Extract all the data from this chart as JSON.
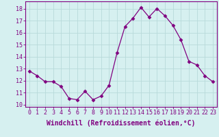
{
  "x": [
    0,
    1,
    2,
    3,
    4,
    5,
    6,
    7,
    8,
    9,
    10,
    11,
    12,
    13,
    14,
    15,
    16,
    17,
    18,
    19,
    20,
    21,
    22,
    23
  ],
  "y": [
    12.8,
    12.4,
    11.9,
    11.9,
    11.5,
    10.5,
    10.4,
    11.1,
    10.4,
    10.7,
    11.6,
    14.3,
    16.5,
    17.2,
    18.1,
    17.3,
    18.0,
    17.4,
    16.6,
    15.4,
    13.6,
    13.3,
    12.4,
    11.9
  ],
  "line_color": "#800080",
  "marker": "D",
  "marker_size": 2.5,
  "bg_color": "#d6f0f0",
  "grid_color": "#b8dada",
  "xlabel": "Windchill (Refroidissement éolien,°C)",
  "ylim": [
    9.8,
    18.6
  ],
  "xlim": [
    -0.5,
    23.5
  ],
  "yticks": [
    10,
    11,
    12,
    13,
    14,
    15,
    16,
    17,
    18
  ],
  "xticks": [
    0,
    1,
    2,
    3,
    4,
    5,
    6,
    7,
    8,
    9,
    10,
    11,
    12,
    13,
    14,
    15,
    16,
    17,
    18,
    19,
    20,
    21,
    22,
    23
  ],
  "label_fontsize": 7,
  "tick_fontsize": 6
}
